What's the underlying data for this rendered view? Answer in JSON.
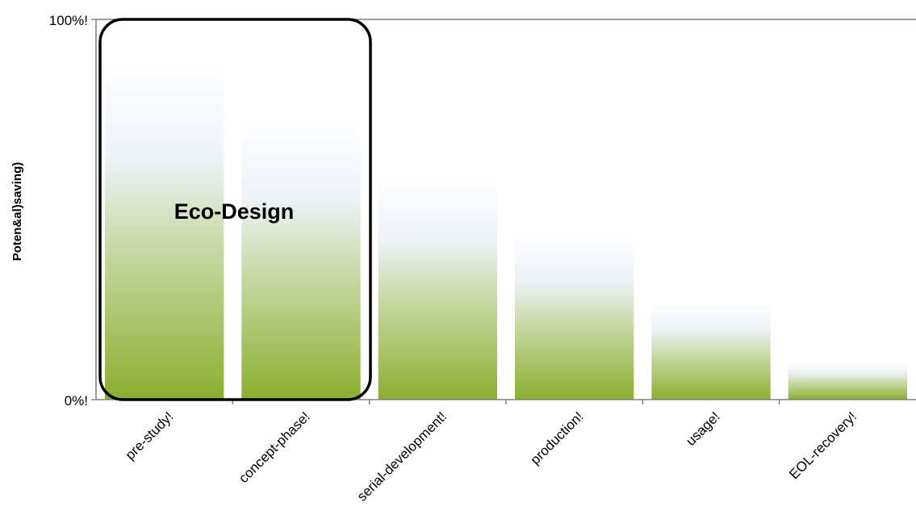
{
  "chart_data": {
    "type": "bar",
    "title": "",
    "xlabel": "",
    "ylabel": "Poten&al)saving)",
    "categories": [
      "pre-study!",
      "concept-phase!",
      "serial-development!",
      "production!",
      "usage!",
      "EOL-recovery!"
    ],
    "values": [
      89,
      74,
      59,
      44,
      26,
      10
    ],
    "ylim": [
      0,
      100
    ],
    "ytick_labels": [
      "0%!",
      "100%!"
    ],
    "grid": false,
    "legend": "none",
    "annotation": {
      "text": "Eco-Design",
      "spans": [
        "pre-study!",
        "concept-phase!"
      ]
    },
    "colors": {
      "bar_bottom": "#8aaf2f",
      "bar_mid": "#c8d9a6",
      "bar_top": "#eef3fa",
      "axis": "#808080",
      "outline": "#000000"
    }
  }
}
